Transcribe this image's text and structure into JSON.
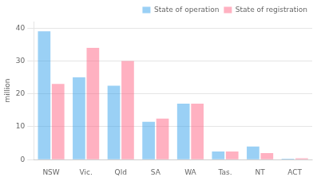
{
  "chart_data": {
    "type": "bar",
    "categories": [
      "NSW",
      "Vic.",
      "Qld",
      "SA",
      "WA",
      "Tas.",
      "NT",
      "ACT"
    ],
    "series": [
      {
        "name": "State of operation",
        "values": [
          39,
          25,
          22.5,
          11.5,
          17,
          2.5,
          4,
          0.3
        ]
      },
      {
        "name": "State of registration",
        "values": [
          23,
          34,
          30,
          12.5,
          17,
          2.5,
          2,
          0.4
        ]
      }
    ],
    "ylabel": "million",
    "ylim": [
      0,
      42
    ],
    "yticks": [
      0,
      10,
      20,
      30,
      40
    ],
    "grid": true,
    "legend": "upper right"
  }
}
